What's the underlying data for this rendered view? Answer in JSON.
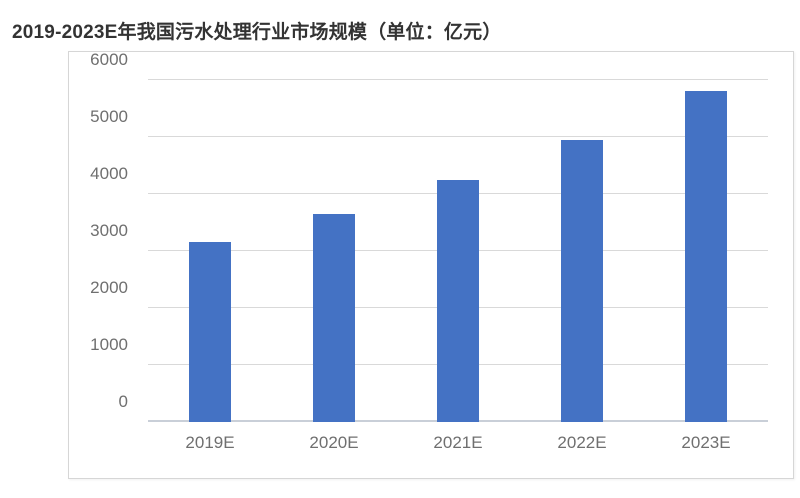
{
  "title": "2019-2023E年我国污水处理行业市场规模（单位：亿元）",
  "chart_data": {
    "type": "bar",
    "title": "2019-2023E年我国污水处理行业市场规模（单位：亿元）",
    "categories": [
      "2019E",
      "2020E",
      "2021E",
      "2022E",
      "2023E"
    ],
    "values": [
      3150,
      3650,
      4250,
      4950,
      5800
    ],
    "xlabel": "",
    "ylabel": "",
    "ylim": [
      0,
      6000
    ],
    "ytick_step": 1000,
    "grid": true,
    "legend": "none",
    "colors": {
      "bar": "#4472C4",
      "gridline": "#d9d9d9",
      "baseline": "#c9cfd8",
      "tick_label": "#6f6f6f",
      "title": "#333333",
      "frame_border": "#d6d6d6",
      "background": "#ffffff"
    }
  }
}
